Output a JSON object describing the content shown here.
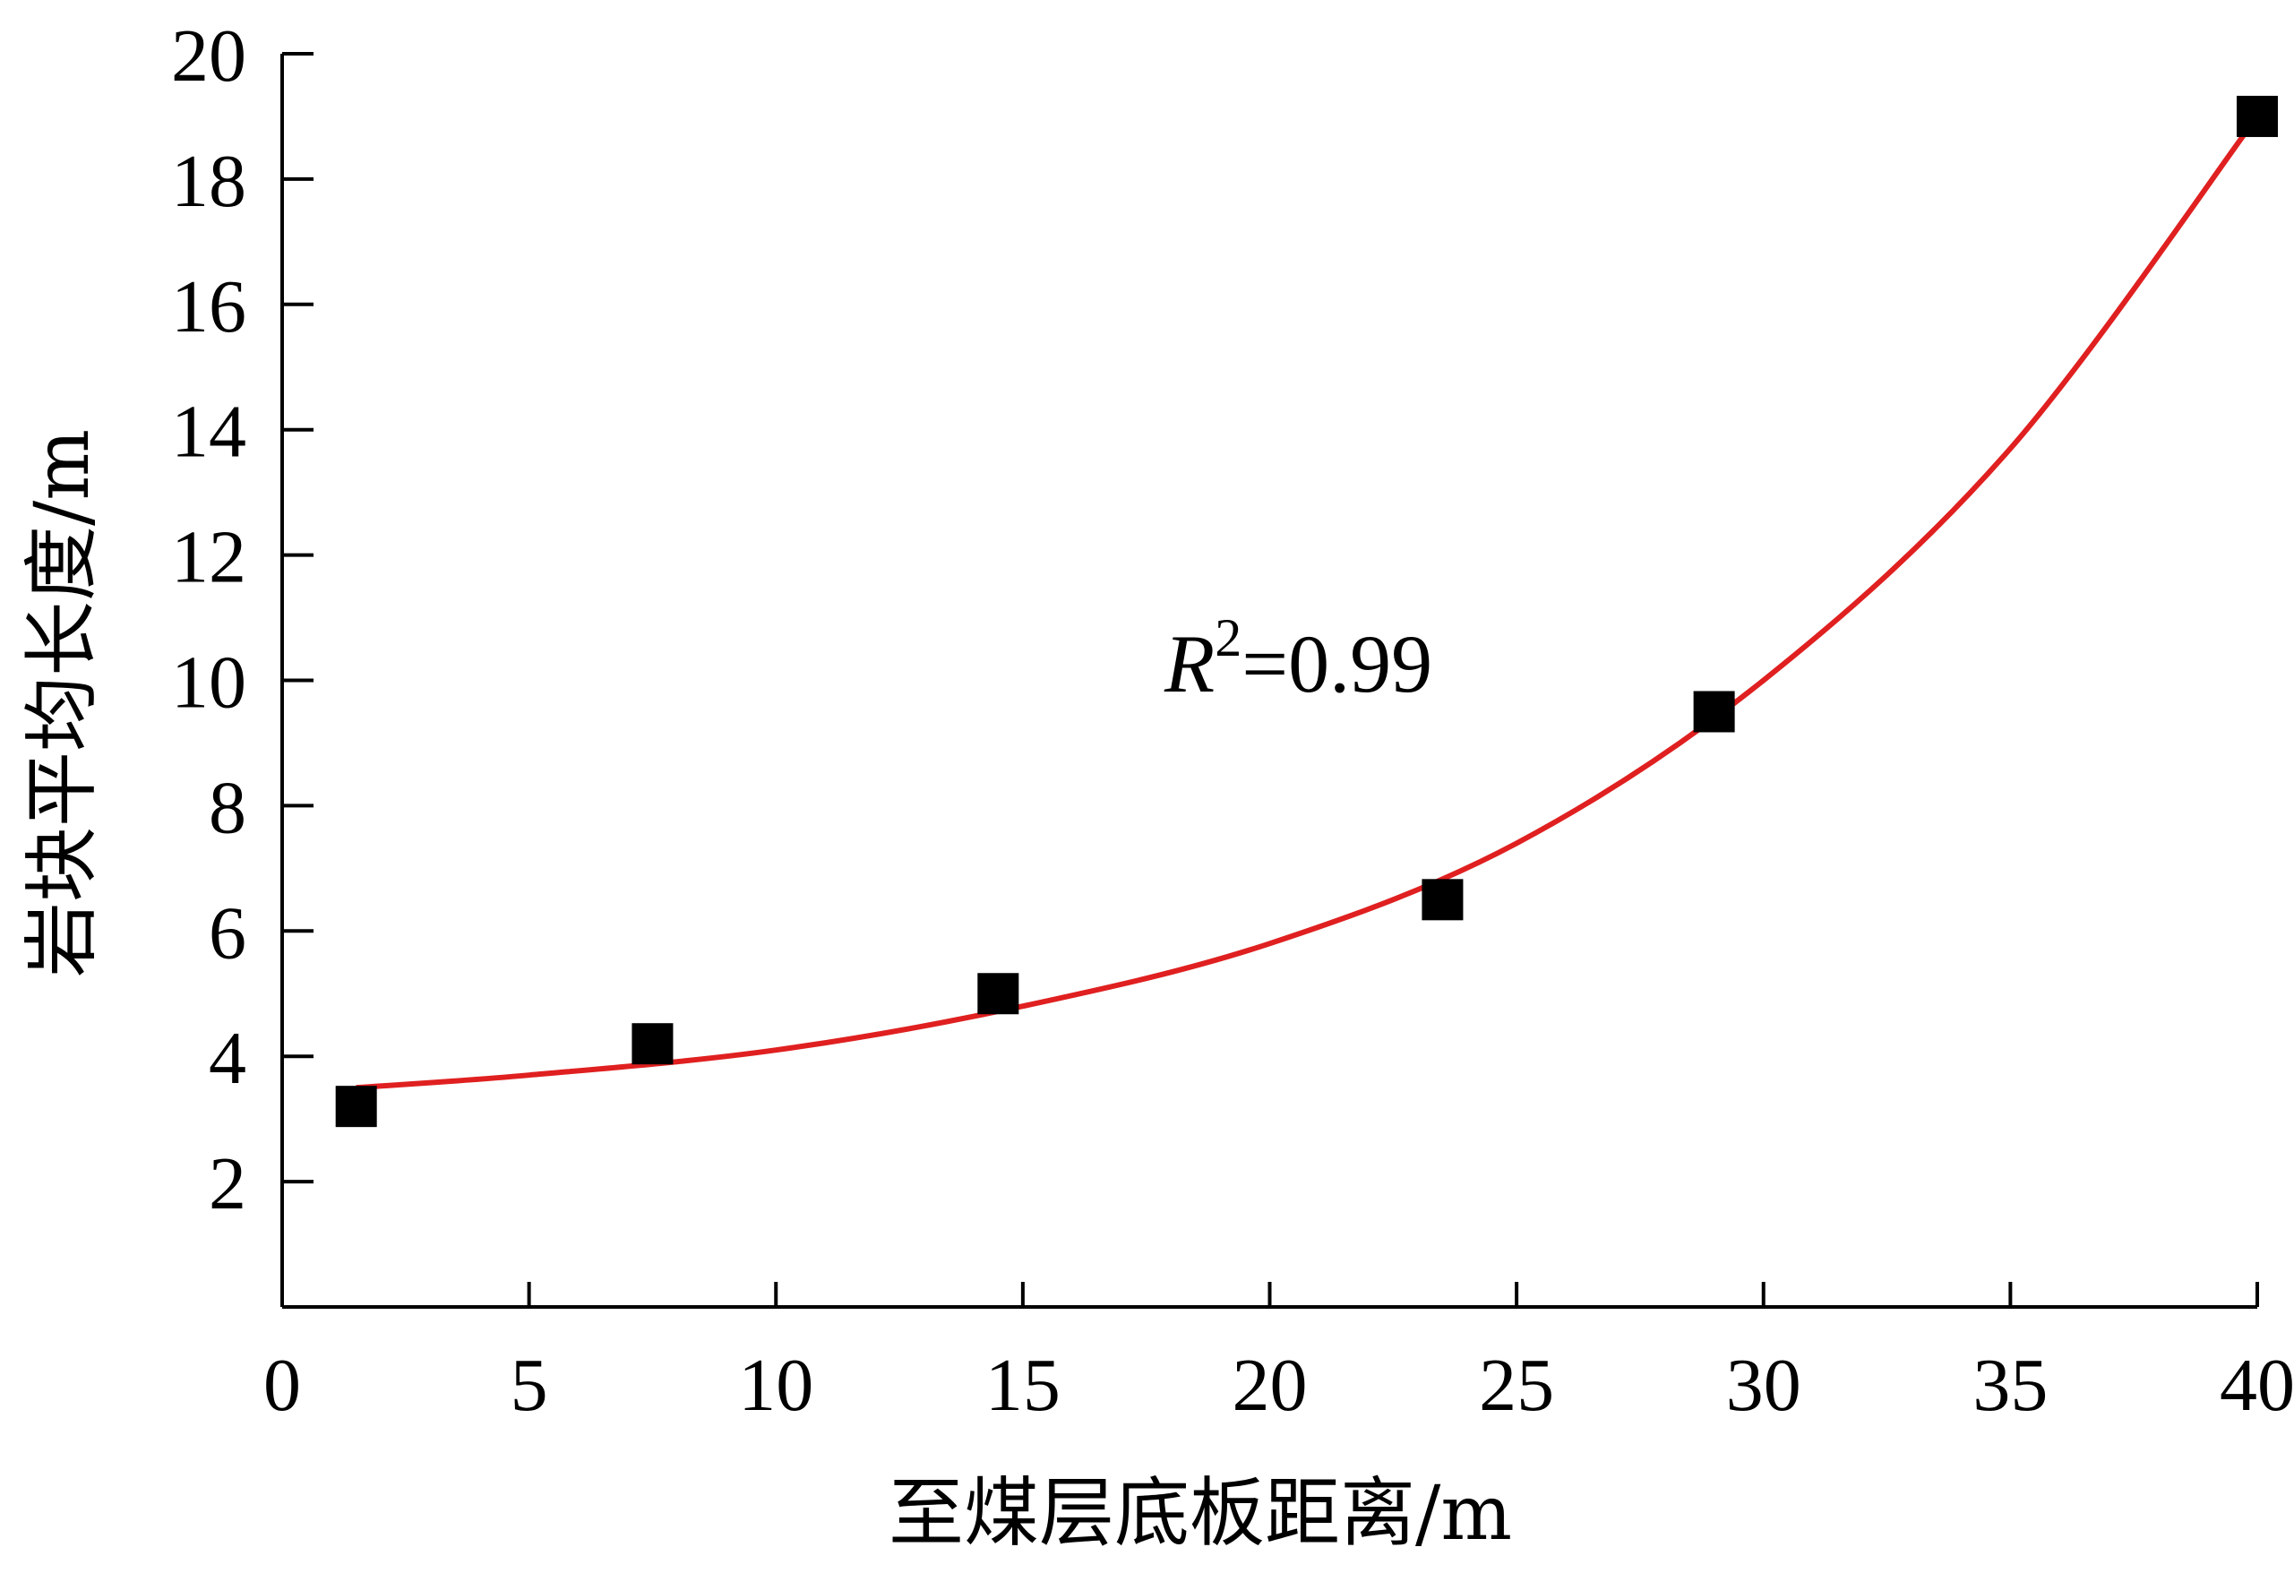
{
  "chart_data": {
    "type": "scatter",
    "xlabel": "至煤层底板距离/m",
    "ylabel": "岩块平均长度/m",
    "xlim": [
      0,
      40
    ],
    "ylim": [
      0,
      20
    ],
    "xticks": [
      0,
      5,
      10,
      15,
      20,
      25,
      30,
      35,
      40
    ],
    "yticks": [
      2,
      4,
      6,
      8,
      10,
      12,
      14,
      16,
      18,
      20
    ],
    "grid": false,
    "series": [
      {
        "kind": "points",
        "marker": "square",
        "color": "#000000",
        "x": [
          1.5,
          7.5,
          14.5,
          23.5,
          29,
          40
        ],
        "y": [
          3.2,
          4.2,
          5.0,
          6.5,
          9.5,
          19.0
        ]
      },
      {
        "kind": "fit-line",
        "color": "#e02020",
        "x": [
          1.5,
          5,
          10,
          15,
          20,
          25,
          30,
          35,
          40
        ],
        "y": [
          3.5,
          3.7,
          4.1,
          4.8,
          5.8,
          7.4,
          10.0,
          13.7,
          19.0
        ]
      }
    ],
    "annotation": {
      "symbol": "R",
      "superscript": "2",
      "text": "=0.99"
    }
  }
}
